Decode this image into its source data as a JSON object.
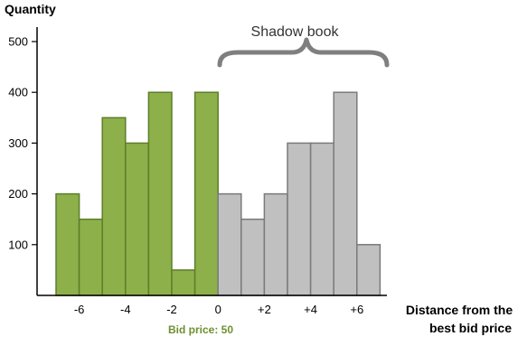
{
  "chart_data": {
    "type": "bar",
    "title": "",
    "ylabel": "Quantity",
    "xlabel": "Distance from the best bid price",
    "xlabel_lines": [
      "Distance from the",
      "best bid price"
    ],
    "ylim": [
      0,
      550
    ],
    "yticks": [
      100,
      200,
      300,
      400,
      500
    ],
    "bars": [
      {
        "x": -7,
        "value": 200,
        "group": "bid"
      },
      {
        "x": -6,
        "value": 150,
        "group": "bid"
      },
      {
        "x": -5,
        "value": 350,
        "group": "bid"
      },
      {
        "x": -4,
        "value": 300,
        "group": "bid"
      },
      {
        "x": -3,
        "value": 400,
        "group": "bid"
      },
      {
        "x": -2,
        "value": 50,
        "group": "bid"
      },
      {
        "x": -1,
        "value": 400,
        "group": "bid"
      },
      {
        "x": 0,
        "value": 200,
        "group": "shadow"
      },
      {
        "x": 1,
        "value": 150,
        "group": "shadow"
      },
      {
        "x": 2,
        "value": 200,
        "group": "shadow"
      },
      {
        "x": 3,
        "value": 300,
        "group": "shadow"
      },
      {
        "x": 4,
        "value": 300,
        "group": "shadow"
      },
      {
        "x": 5,
        "value": 400,
        "group": "shadow"
      },
      {
        "x": 6,
        "value": 100,
        "group": "shadow"
      }
    ],
    "xtick_values": [
      -6,
      -4,
      -2,
      0,
      2,
      4,
      6
    ],
    "xtick_labels": [
      "-6",
      "-4",
      "-2",
      "0",
      "+2",
      "+4",
      "+6"
    ],
    "annotations": {
      "shadow_book": "Shadow book",
      "bid_price": "Bid price: 50"
    },
    "colors": {
      "bid_fill": "#8db04a",
      "bid_stroke": "#5e7d2a",
      "shadow_fill": "#c0c0c0",
      "shadow_stroke": "#7a7a7a",
      "brace": "#7f7f7f",
      "bid_label": "#6f8f2f"
    }
  }
}
